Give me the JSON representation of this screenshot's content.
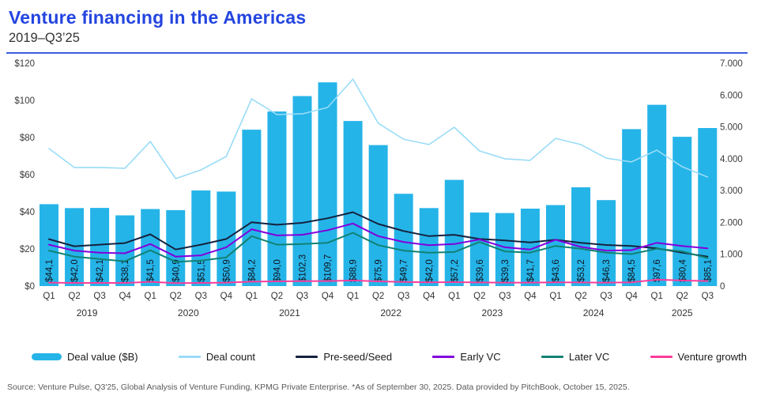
{
  "header": {
    "title": "Venture financing in the Americas",
    "subtitle": "2019–Q3’25"
  },
  "chart_data": {
    "type": "bar+line combo",
    "quarters": [
      "Q1",
      "Q2",
      "Q3",
      "Q4",
      "Q1",
      "Q2",
      "Q3",
      "Q4",
      "Q1",
      "Q2",
      "Q3",
      "Q4",
      "Q1",
      "Q2",
      "Q3",
      "Q4",
      "Q1",
      "Q2",
      "Q3",
      "Q4",
      "Q1",
      "Q2",
      "Q3",
      "Q4",
      "Q1",
      "Q2",
      "Q3"
    ],
    "year_groups": [
      {
        "label": "2019",
        "first_quarter_index": 0,
        "quarter_count": 4
      },
      {
        "label": "2020",
        "first_quarter_index": 4,
        "quarter_count": 4
      },
      {
        "label": "2021",
        "first_quarter_index": 8,
        "quarter_count": 4
      },
      {
        "label": "2022",
        "first_quarter_index": 12,
        "quarter_count": 4
      },
      {
        "label": "2023",
        "first_quarter_index": 16,
        "quarter_count": 4
      },
      {
        "label": "2024",
        "first_quarter_index": 20,
        "quarter_count": 4
      },
      {
        "label": "2025",
        "first_quarter_index": 24,
        "quarter_count": 3
      }
    ],
    "left_axis": {
      "min": 0,
      "max": 120,
      "tick_step": 20,
      "tick_labels": [
        "$0",
        "$20",
        "$40",
        "$60",
        "$80",
        "$100",
        "$120"
      ]
    },
    "right_axis": {
      "min": 0,
      "max": 7000,
      "tick_step": 1000,
      "tick_labels": [
        "0",
        "1.000",
        "2.000",
        "3.000",
        "4.000",
        "5.000",
        "6.000",
        "7.000"
      ]
    },
    "bar_series": {
      "name": "Deal value ($B)",
      "axis": "left",
      "color": "#25B4E8",
      "values": [
        44.1,
        42.0,
        42.1,
        38.1,
        41.5,
        40.9,
        51.5,
        50.9,
        84.2,
        94.0,
        102.3,
        109.7,
        88.9,
        75.9,
        49.7,
        42.0,
        57.2,
        39.6,
        39.3,
        41.7,
        43.6,
        53.2,
        46.3,
        84.5,
        97.6,
        80.4,
        85.1
      ],
      "value_labels": [
        "$44,1",
        "$42,0",
        "$42,1",
        "$38,1",
        "$41,5",
        "$40,9",
        "$51,5",
        "$50,9",
        "$84,2",
        "$94,0",
        "$102,3",
        "$109,7",
        "$88,9",
        "$75,9",
        "$49,7",
        "$42,0",
        "$57,2",
        "$39,6",
        "$39,3",
        "$41,7",
        "$43,6",
        "$53,2",
        "$46,3",
        "$84,5",
        "$97,6",
        "$80,4",
        "$85,1"
      ]
    },
    "line_series": [
      {
        "name": "Deal count",
        "axis": "right",
        "color": "#9ADCF8",
        "width": 1.6,
        "values": [
          4320,
          3725,
          3725,
          3700,
          4540,
          3375,
          3650,
          4070,
          5880,
          5390,
          5410,
          5610,
          6500,
          5115,
          4615,
          4445,
          4990,
          4245,
          4000,
          3950,
          4640,
          4445,
          4020,
          3900,
          4270,
          3750,
          3425
        ]
      },
      {
        "name": "Pre-seed/Seed",
        "axis": "right",
        "color": "#15223E",
        "width": 2,
        "values": [
          1475,
          1250,
          1300,
          1350,
          1625,
          1150,
          1300,
          1480,
          2005,
          1925,
          1985,
          2130,
          2320,
          1950,
          1730,
          1570,
          1610,
          1480,
          1435,
          1370,
          1455,
          1360,
          1290,
          1260,
          1185,
          1050,
          925
        ]
      },
      {
        "name": "Early VC",
        "axis": "right",
        "color": "#8200DC",
        "width": 2,
        "values": [
          1300,
          1115,
          1050,
          1030,
          1320,
          925,
          965,
          1220,
          1785,
          1590,
          1610,
          1755,
          1965,
          1570,
          1385,
          1285,
          1320,
          1465,
          1220,
          1150,
          1455,
          1230,
          1115,
          1130,
          1360,
          1260,
          1185
        ]
      },
      {
        "name": "Later VC",
        "axis": "right",
        "color": "#108273",
        "width": 2,
        "values": [
          1115,
          925,
          850,
          780,
          1125,
          765,
          800,
          900,
          1570,
          1300,
          1320,
          1360,
          1675,
          1285,
          1115,
          1050,
          1070,
          1385,
          1090,
          1050,
          1260,
          1175,
          1050,
          1005,
          1175,
          1090,
          880
        ]
      },
      {
        "name": "Venture growth",
        "axis": "right",
        "color": "#FA3C9C",
        "width": 2,
        "values": [
          110,
          100,
          100,
          100,
          135,
          95,
          100,
          110,
          140,
          150,
          155,
          160,
          175,
          150,
          130,
          120,
          125,
          115,
          110,
          110,
          120,
          115,
          110,
          120,
          200,
          175,
          160
        ]
      }
    ]
  },
  "legend": {
    "items": [
      {
        "label": "Deal value ($B)",
        "swatch": "bar",
        "color": "#25B4E8"
      },
      {
        "label": "Deal count",
        "swatch": "line",
        "color": "#9ADCF8"
      },
      {
        "label": "Pre-seed/Seed",
        "swatch": "line",
        "color": "#15223E"
      },
      {
        "label": "Early VC",
        "swatch": "line",
        "color": "#8200DC"
      },
      {
        "label": "Later VC",
        "swatch": "line",
        "color": "#108273"
      },
      {
        "label": "Venture growth",
        "swatch": "line",
        "color": "#FA3C9C"
      }
    ]
  },
  "footer": {
    "source": "Source: Venture Pulse, Q3'25, Global Analysis of Venture Funding, KPMG Private Enterprise. *As of September 30, 2025. Data provided by PitchBook, October 15, 2025."
  }
}
